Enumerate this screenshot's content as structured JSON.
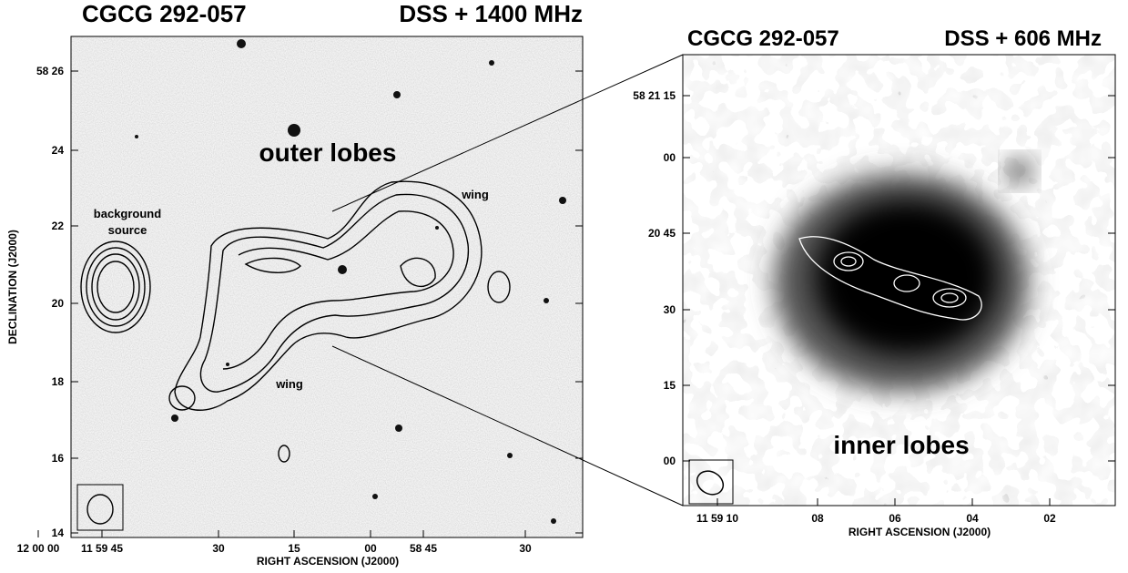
{
  "left_panel": {
    "title_left": "CGCG 292-057",
    "title_right": "DSS + 1400 MHz",
    "yticks": [
      "58 26",
      "24",
      "22",
      "20",
      "18",
      "16",
      "14"
    ],
    "xticks": [
      "12 00 00",
      "11 59 45",
      "30",
      "15",
      "00",
      "58 45",
      "30"
    ],
    "ylabel": "DECLINATION (J2000)",
    "xlabel": "RIGHT ASCENSION (J2000)",
    "annotations": [
      "outer lobes",
      "background",
      "source",
      "wing",
      "wing"
    ]
  },
  "right_panel": {
    "title_left": "CGCG 292-057",
    "title_right": "DSS + 606 MHz",
    "yticks": [
      "58 21 15",
      "00",
      "20 45",
      "30",
      "15",
      "00"
    ],
    "xticks": [
      "11 59 10",
      "08",
      "06",
      "04",
      "02"
    ],
    "xlabel": "RIGHT ASCENSION (J2000)",
    "annotations": [
      "inner lobes"
    ]
  }
}
